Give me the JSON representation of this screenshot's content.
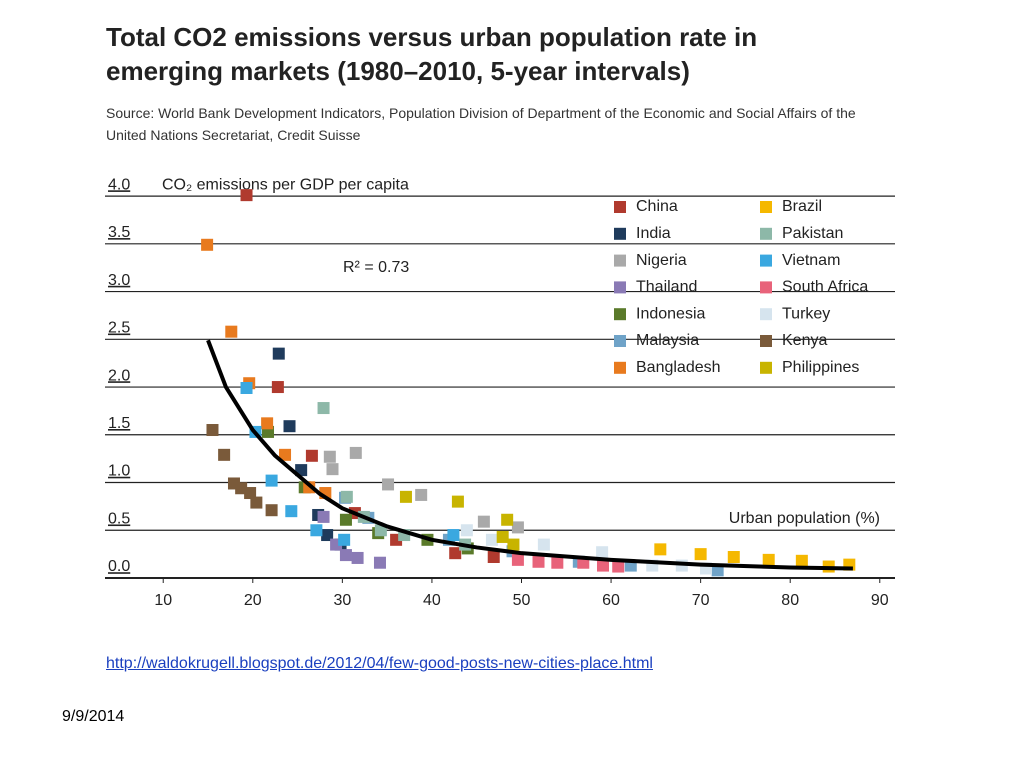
{
  "chart_data": {
    "type": "scatter",
    "title": "Total CO2 emissions versus urban population rate in emerging markets (1980–2010, 5-year intervals)",
    "subtitle": "Source: World Bank Development Indicators, Population Division of Department of the Economic and Social Affairs of the United Nations Secretariat, Credit Suisse",
    "ylabel": "CO₂ emissions per GDP per capita",
    "xlabel": "Urban population (%)",
    "annotation": "R² = 0.73",
    "xlim": [
      3.5,
      91.7
    ],
    "ylim": [
      0,
      4.2
    ],
    "xticks": [
      10,
      20,
      30,
      40,
      50,
      60,
      70,
      80,
      90
    ],
    "yticks": [
      {
        "value": 4,
        "label": "4.0"
      },
      {
        "value": 3.5,
        "label": "3.5"
      },
      {
        "value": 3,
        "label": "3.0"
      },
      {
        "value": 2.5,
        "label": "2.5"
      },
      {
        "value": 2,
        "label": "2.0"
      },
      {
        "value": 1.5,
        "label": "1.5"
      },
      {
        "value": 1,
        "label": "1.0"
      },
      {
        "value": 0.5,
        "label": "0.5"
      },
      {
        "value": 0,
        "label": "0.0"
      }
    ],
    "grid": true,
    "legend": "upper right",
    "series": [
      {
        "name": "China",
        "color": "#b03a2e",
        "x": [
          19.3,
          22.8,
          26.6,
          31.4,
          36.0,
          42.6,
          46.9
        ],
        "values": [
          4.01,
          2.0,
          1.28,
          0.68,
          0.4,
          0.26,
          0.22
        ]
      },
      {
        "name": "India",
        "color": "#1f3b5c",
        "x": [
          22.9,
          24.1,
          25.4,
          27.3,
          28.3,
          29.8
        ],
        "values": [
          2.35,
          1.59,
          1.13,
          0.66,
          0.45,
          0.35
        ]
      },
      {
        "name": "Nigeria",
        "color": "#a9a9a9",
        "x": [
          28.6,
          28.9,
          31.5,
          35.1,
          38.8,
          45.8,
          49.6
        ],
        "values": [
          1.27,
          1.14,
          1.31,
          0.98,
          0.87,
          0.59,
          0.53
        ]
      },
      {
        "name": "Thailand",
        "color": "#8a7ab5",
        "x": [
          27.9,
          29.3,
          30.4,
          31.7,
          34.2
        ],
        "values": [
          0.64,
          0.35,
          0.24,
          0.21,
          0.16
        ]
      },
      {
        "name": "Indonesia",
        "color": "#5a7a2a",
        "x": [
          21.7,
          25.8,
          30.4,
          34.0,
          39.5,
          44.0
        ],
        "values": [
          1.53,
          0.95,
          0.61,
          0.47,
          0.4,
          0.31
        ]
      },
      {
        "name": "Malaysia",
        "color": "#6fa3c8",
        "x": [
          30.3,
          32.9,
          41.9,
          49.0,
          56.4,
          62.2,
          71.9
        ],
        "values": [
          0.84,
          0.63,
          0.4,
          0.28,
          0.17,
          0.13,
          0.08
        ]
      },
      {
        "name": "Bangladesh",
        "color": "#e87a1e",
        "x": [
          14.9,
          17.6,
          19.6,
          21.6,
          23.6,
          26.3,
          28.1
        ],
        "values": [
          3.49,
          2.58,
          2.04,
          1.62,
          1.29,
          0.95,
          0.89
        ]
      },
      {
        "name": "Brazil",
        "color": "#f5b800",
        "x": [
          65.5,
          70.0,
          73.7,
          77.6,
          81.3,
          84.3,
          86.6
        ],
        "values": [
          0.3,
          0.25,
          0.22,
          0.19,
          0.18,
          0.12,
          0.14
        ]
      },
      {
        "name": "Pakistan",
        "color": "#8db8a8",
        "x": [
          27.9,
          30.5,
          32.4,
          34.3,
          36.9,
          43.7
        ],
        "values": [
          1.78,
          0.85,
          0.64,
          0.5,
          0.45,
          0.35
        ]
      },
      {
        "name": "Vietnam",
        "color": "#3aa8e0",
        "x": [
          19.3,
          20.3,
          22.1,
          24.3,
          27.1,
          30.2,
          42.4
        ],
        "values": [
          1.99,
          1.53,
          1.02,
          0.7,
          0.5,
          0.4,
          0.45
        ]
      },
      {
        "name": "South Africa",
        "color": "#e8637a",
        "x": [
          49.6,
          51.9,
          54.0,
          56.9,
          59.1,
          60.8
        ],
        "values": [
          0.19,
          0.17,
          0.16,
          0.16,
          0.13,
          0.12
        ]
      },
      {
        "name": "Turkey",
        "color": "#d6e4ee",
        "x": [
          43.9,
          46.7,
          52.5,
          59.0,
          64.6,
          67.9,
          70.6
        ],
        "values": [
          0.5,
          0.4,
          0.35,
          0.27,
          0.13,
          0.13,
          0.1
        ]
      },
      {
        "name": "Kenya",
        "color": "#7a5a3a",
        "x": [
          15.5,
          16.8,
          17.9,
          18.7,
          19.7,
          20.4,
          22.1
        ],
        "values": [
          1.55,
          1.29,
          0.99,
          0.94,
          0.89,
          0.79,
          0.71
        ]
      },
      {
        "name": "Philippines",
        "color": "#c8b400",
        "x": [
          37.1,
          42.9,
          48.4,
          47.9,
          49.1
        ],
        "values": [
          0.85,
          0.8,
          0.61,
          0.43,
          0.35
        ]
      }
    ],
    "trend": {
      "x": [
        15,
        17,
        20,
        22.5,
        25,
        27.5,
        30,
        35,
        40,
        45,
        50,
        60,
        70,
        80,
        87
      ],
      "y": [
        2.49,
        2.0,
        1.55,
        1.28,
        1.08,
        0.88,
        0.73,
        0.54,
        0.4,
        0.32,
        0.26,
        0.19,
        0.14,
        0.11,
        0.1
      ]
    }
  },
  "link": "http://waldokrugell.blogspot.de/2012/04/few-good-posts-new-cities-place.html",
  "date": "9/9/2014"
}
